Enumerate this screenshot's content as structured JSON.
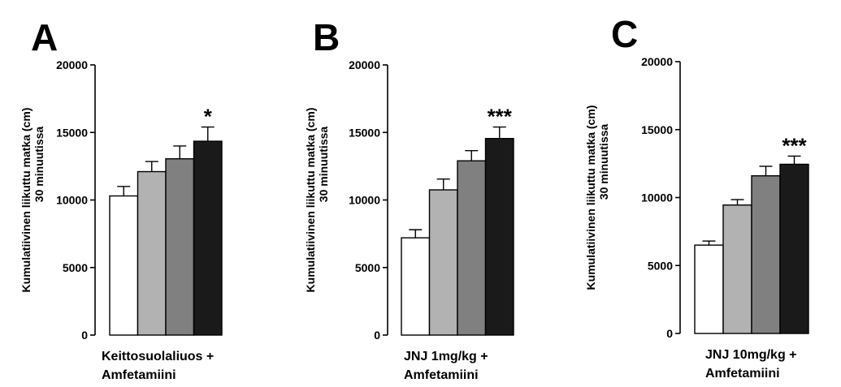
{
  "chart_data": [
    {
      "type": "bar",
      "panel": "A",
      "ylabel": [
        "Kumulatiivinen liikuttu matka (cm)",
        "30 minuutissa"
      ],
      "xlabel": [
        "Keittosuolaliuos +",
        "Amfetamiini"
      ],
      "ylim": [
        0,
        20000
      ],
      "yticks": [
        0,
        5000,
        10000,
        15000,
        20000
      ],
      "values": [
        10300,
        12100,
        13050,
        14350
      ],
      "errors": [
        700,
        750,
        950,
        1050
      ],
      "bar_colors": [
        "#ffffff",
        "#b2b2b2",
        "#808080",
        "#1a1a1a"
      ],
      "significance": [
        "",
        "",
        "",
        "*"
      ]
    },
    {
      "type": "bar",
      "panel": "B",
      "ylabel": [
        "Kumulatiivinen liikuttu matka (cm)",
        "30 minuutissa"
      ],
      "xlabel": [
        "JNJ 1mg/kg +",
        "Amfetamiini"
      ],
      "ylim": [
        0,
        20000
      ],
      "yticks": [
        0,
        5000,
        10000,
        15000,
        20000
      ],
      "values": [
        7200,
        10750,
        12900,
        14550
      ],
      "errors": [
        600,
        800,
        750,
        850
      ],
      "bar_colors": [
        "#ffffff",
        "#b2b2b2",
        "#808080",
        "#1a1a1a"
      ],
      "significance": [
        "",
        "",
        "",
        "***"
      ]
    },
    {
      "type": "bar",
      "panel": "C",
      "ylabel": [
        "Kumulatiivinen liikuttu matka (cm)",
        "30 minuutissa"
      ],
      "xlabel": [
        "JNJ 10mg/kg +",
        "Amfetamiini"
      ],
      "ylim": [
        0,
        20000
      ],
      "yticks": [
        0,
        5000,
        10000,
        15000,
        20000
      ],
      "values": [
        6500,
        9450,
        11600,
        12450
      ],
      "errors": [
        300,
        400,
        700,
        600
      ],
      "bar_colors": [
        "#ffffff",
        "#b2b2b2",
        "#808080",
        "#1a1a1a"
      ],
      "significance": [
        "",
        "",
        "",
        "***"
      ]
    }
  ]
}
